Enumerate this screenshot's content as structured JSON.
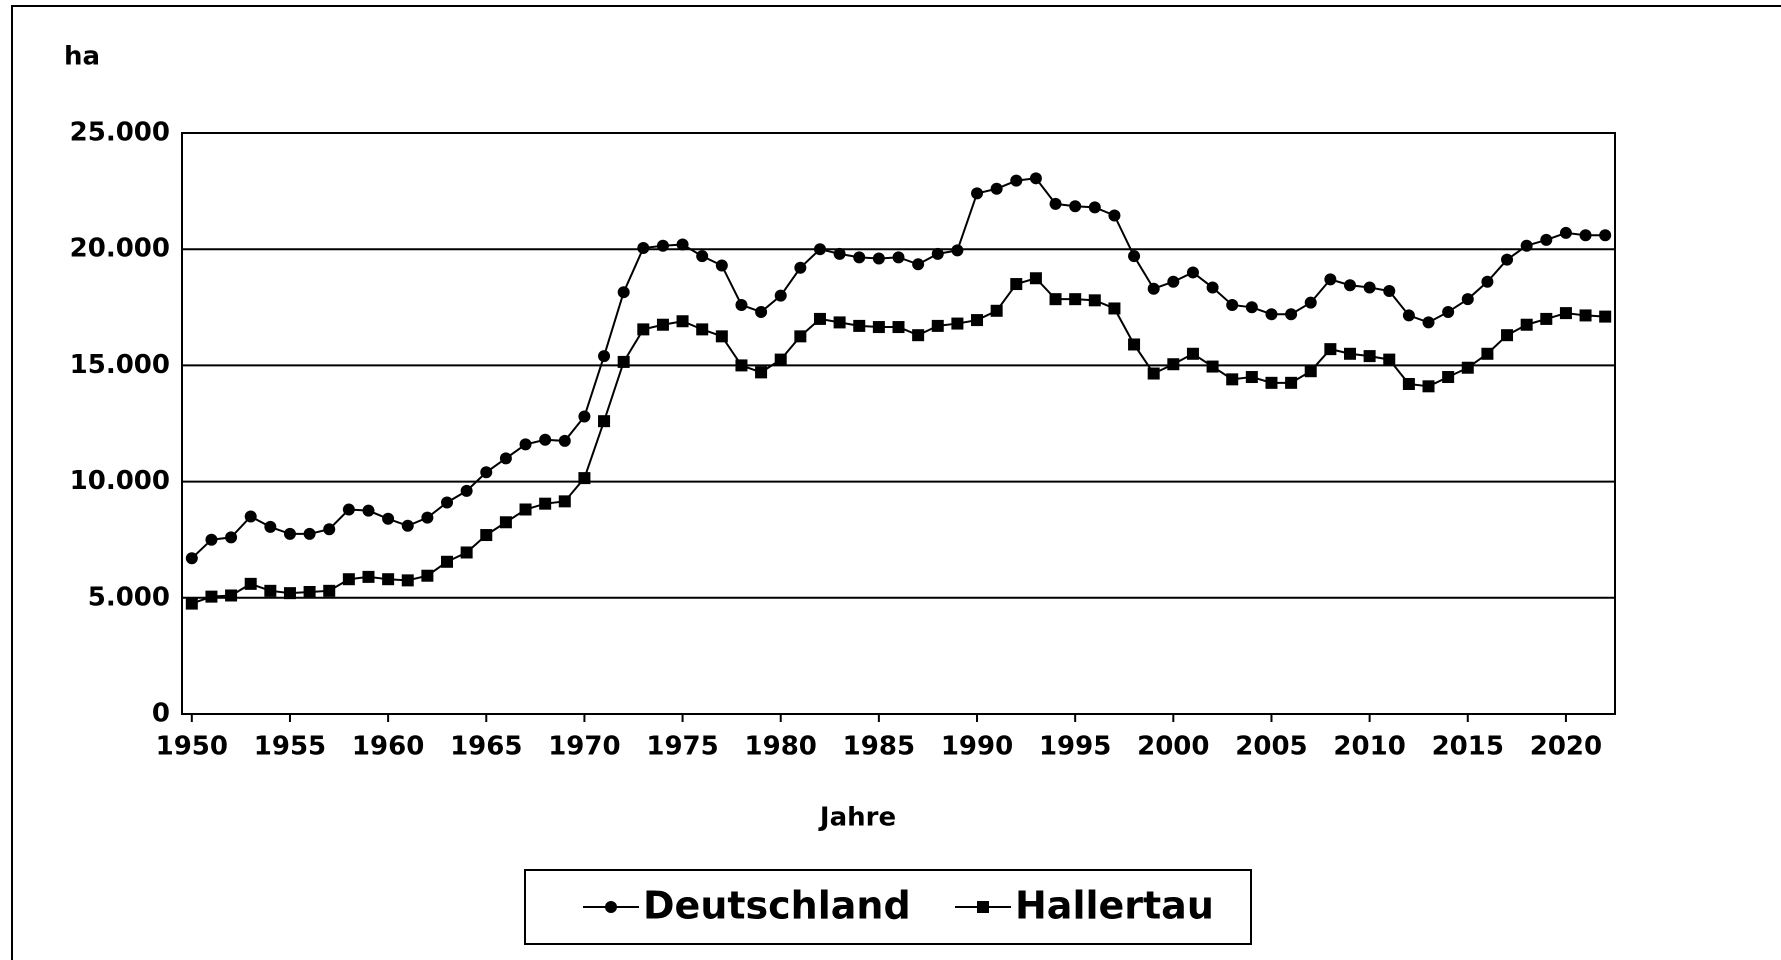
{
  "chart_data": {
    "type": "line",
    "y_label": "ha",
    "x_label": "Jahre",
    "x": [
      1950,
      1951,
      1952,
      1953,
      1954,
      1955,
      1956,
      1957,
      1958,
      1959,
      1960,
      1961,
      1962,
      1963,
      1964,
      1965,
      1966,
      1967,
      1968,
      1969,
      1970,
      1971,
      1972,
      1973,
      1974,
      1975,
      1976,
      1977,
      1978,
      1979,
      1980,
      1981,
      1982,
      1983,
      1984,
      1985,
      1986,
      1987,
      1988,
      1989,
      1990,
      1991,
      1992,
      1993,
      1994,
      1995,
      1996,
      1997,
      1998,
      1999,
      2000,
      2001,
      2002,
      2003,
      2004,
      2005,
      2006,
      2007,
      2008,
      2009,
      2010,
      2011,
      2012,
      2013,
      2014,
      2015,
      2016,
      2017,
      2018,
      2019,
      2020,
      2021,
      2022
    ],
    "xlim": [
      1949.5,
      2022.5
    ],
    "xticks": [
      1950,
      1955,
      1960,
      1965,
      1970,
      1975,
      1980,
      1985,
      1990,
      1995,
      2000,
      2005,
      2010,
      2015,
      2020
    ],
    "ylim": [
      0,
      25000
    ],
    "yticks": [
      0,
      {
        "value": 5000,
        "label": "5.000"
      },
      {
        "value": 10000,
        "label": "10.000"
      },
      {
        "value": 15000,
        "label": "15.000"
      },
      {
        "value": 20000,
        "label": "20.000"
      },
      {
        "value": 25000,
        "label": "25.000"
      }
    ],
    "grid": true,
    "legend": "bottom",
    "series": [
      {
        "name": "Deutschland",
        "color": "#000000",
        "marker": "circle",
        "values": [
          6700,
          7500,
          7600,
          8500,
          8050,
          7750,
          7750,
          7950,
          8800,
          8750,
          8400,
          8100,
          8450,
          9100,
          9600,
          10400,
          11000,
          11600,
          11800,
          11750,
          12800,
          15400,
          18150,
          20050,
          20150,
          20200,
          19700,
          19300,
          17600,
          17300,
          18000,
          19200,
          20000,
          19800,
          19650,
          19600,
          19650,
          19350,
          19800,
          19950,
          22400,
          22600,
          22950,
          23050,
          21950,
          21850,
          21800,
          21450,
          19700,
          18300,
          18600,
          19000,
          18350,
          17600,
          17500,
          17200,
          17200,
          17700,
          18700,
          18450,
          18350,
          18200,
          17150,
          16850,
          17300,
          17850,
          18600,
          19550,
          20150,
          20400,
          20700,
          20600,
          20600
        ]
      },
      {
        "name": "Hallertau",
        "color": "#000000",
        "marker": "square",
        "values": [
          4750,
          5050,
          5100,
          5600,
          5300,
          5200,
          5250,
          5300,
          5800,
          5900,
          5800,
          5750,
          5950,
          6550,
          6950,
          7700,
          8250,
          8800,
          9050,
          9150,
          10150,
          12600,
          15150,
          16550,
          16750,
          16900,
          16550,
          16250,
          15000,
          14700,
          15250,
          16250,
          17000,
          16850,
          16700,
          16650,
          16650,
          16300,
          16700,
          16800,
          16950,
          17350,
          18500,
          18750,
          17850,
          17850,
          17800,
          17450,
          15900,
          14650,
          15050,
          15500,
          14950,
          14400,
          14500,
          14250,
          14250,
          14750,
          15700,
          15500,
          15400,
          15250,
          14200,
          14100,
          14500,
          14900,
          15500,
          16300,
          16750,
          17000,
          17250,
          17150,
          17100
        ]
      }
    ]
  }
}
